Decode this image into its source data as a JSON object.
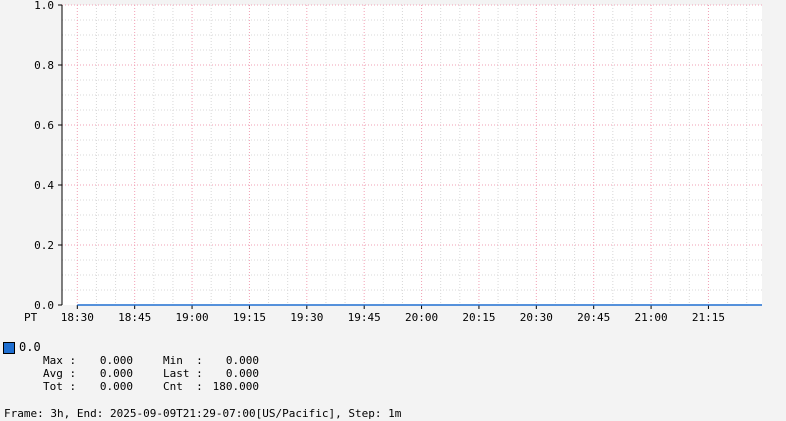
{
  "chart_data": {
    "type": "line",
    "title": "",
    "xlabel": "",
    "ylabel": "",
    "x_start": "18:26",
    "x_end": "21:29",
    "timezone_label": "PT",
    "x_tick_labels": [
      "18:30",
      "18:45",
      "19:00",
      "19:15",
      "19:30",
      "19:45",
      "20:00",
      "20:15",
      "20:30",
      "20:45",
      "21:00",
      "21:15"
    ],
    "y_tick_labels": [
      "0.0",
      "0.2",
      "0.4",
      "0.6",
      "0.8",
      "1.0"
    ],
    "ylim": [
      0,
      1
    ],
    "grid": true,
    "series": [
      {
        "name": "0.0",
        "color": "#1f6fd1",
        "x": [
          "18:30",
          "21:29"
        ],
        "y": [
          0,
          0
        ]
      }
    ]
  },
  "legend": {
    "name": "0.0",
    "stats": {
      "max_label": "Max :",
      "max_value": "0.000",
      "min_label": "Min  :",
      "min_value": "0.000",
      "avg_label": "Avg :",
      "avg_value": "0.000",
      "last_label": "Last :",
      "last_value": "0.000",
      "tot_label": "Tot :",
      "tot_value": "0.000",
      "cnt_label": "Cnt  :",
      "cnt_value": "180.000"
    }
  },
  "footer": {
    "text": "Frame: 3h, End: 2025-09-09T21:29-07:00[US/Pacific], Step: 1m"
  }
}
